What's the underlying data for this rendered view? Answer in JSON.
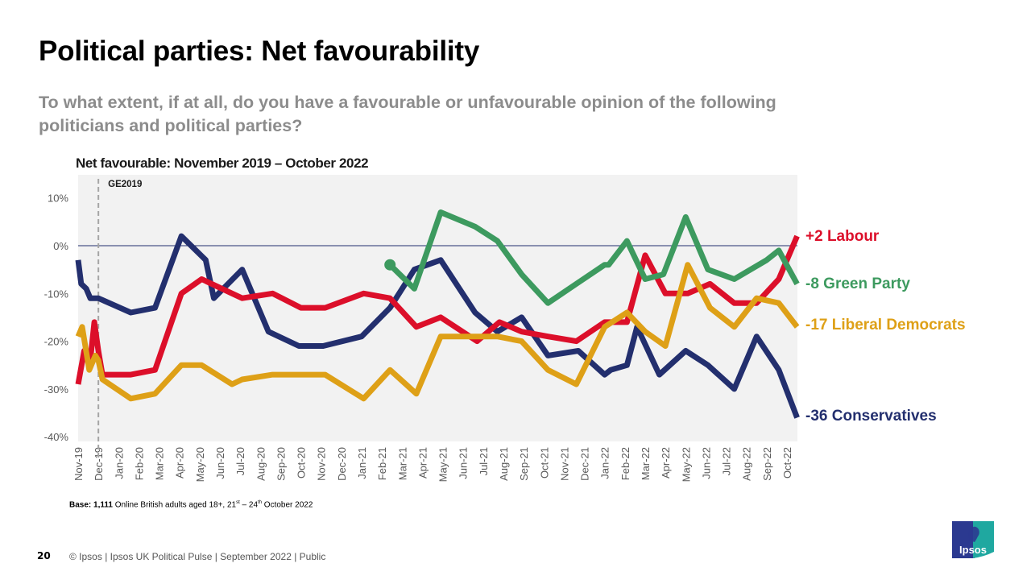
{
  "slide": {
    "title": "Political parties: Net favourability",
    "subtitle": "To what extent, if at all, do you have a favourable or unfavourable opinion of the following politicians and political parties?",
    "base_bold": "Base: 1,111",
    "base_text": " Online British adults aged 18+, 21",
    "base_sup1": "st",
    "base_mid": " – 24",
    "base_sup2": "th",
    "base_end": " October 2022",
    "page_number": "20",
    "footer": "© Ipsos |  Ipsos UK Political Pulse | September 2022 | Public",
    "logo_text": "Ipsos",
    "logo_colors": {
      "left": "#2b3990",
      "right": "#1fa8a0"
    }
  },
  "chart_data": {
    "type": "line",
    "title": "Net favourable: November 2019 – October 2022",
    "xlabel": "",
    "ylabel": "",
    "ylim": [
      -40,
      10
    ],
    "yticks": [
      10,
      0,
      -10,
      -20,
      -30,
      -40
    ],
    "ytick_labels": [
      "10%",
      "0%",
      "-10%",
      "-20%",
      "-30%",
      "-40%"
    ],
    "grid": false,
    "categories": [
      "Nov-19",
      "Dec-19",
      "Jan-20",
      "Feb-20",
      "Mar-20",
      "Apr-20",
      "May-20",
      "Jun-20",
      "Jul-20",
      "Aug-20",
      "Sep-20",
      "Oct-20",
      "Nov-20",
      "Dec-20",
      "Jan-21",
      "Feb-21",
      "Mar-21",
      "Apr-21",
      "May-21",
      "Jun-21",
      "Jul-21",
      "Aug-21",
      "Sep-21",
      "Oct-21",
      "Nov-21",
      "Dec-21",
      "Jan-22",
      "Feb-22",
      "Mar-22",
      "Apr-22",
      "May-22",
      "Jun-22",
      "Jul-22",
      "Aug-22",
      "Sep-22",
      "Oct-22"
    ],
    "annotation": {
      "label": "GE2019",
      "x": 1
    },
    "series": [
      {
        "name": "Conservatives",
        "end_label": "-36 Conservatives",
        "color": "#232f6e",
        "x": [
          0,
          0.15,
          0.4,
          0.6,
          1,
          2.6,
          3.8,
          5.1,
          6.3,
          6.7,
          8.1,
          9.4,
          10.9,
          12.1,
          14,
          15.4,
          16.6,
          17.9,
          19.6,
          20.7,
          21.9,
          23.2,
          24.7,
          26,
          26.3,
          27.1,
          27.6,
          28.7,
          30,
          31.1,
          32.4,
          33.5,
          34.6,
          35.5
        ],
        "values": [
          -3,
          -8,
          -9,
          -11,
          -11,
          -14,
          -13,
          2,
          -3,
          -11,
          -5,
          -18,
          -21,
          -21,
          -19,
          -13,
          -5,
          -3,
          -14,
          -18,
          -15,
          -23,
          -22,
          -27,
          -26,
          -25,
          -17,
          -27,
          -22,
          -25,
          -30,
          -19,
          -26,
          -36
        ]
      },
      {
        "name": "Labour",
        "end_label": "+2 Labour",
        "color": "#dc0f2a",
        "x": [
          0,
          0.3,
          0.6,
          0.8,
          1,
          1.2,
          2.6,
          3.8,
          5.1,
          6.1,
          7.6,
          8.1,
          9.6,
          11,
          12.2,
          14.1,
          15.4,
          16.7,
          17.9,
          19.7,
          20.8,
          21.9,
          23.2,
          24.6,
          26,
          27.1,
          28,
          29,
          30.1,
          31.2,
          32.4,
          33.5,
          34.6,
          35.5
        ],
        "values": [
          -29,
          -22,
          -24,
          -16,
          -22,
          -27,
          -27,
          -26,
          -10,
          -7,
          -10,
          -11,
          -10,
          -13,
          -13,
          -10,
          -11,
          -17,
          -15,
          -20,
          -16,
          -18,
          -19,
          -20,
          -16,
          -16,
          -2,
          -10,
          -10,
          -8,
          -12,
          -12,
          -7,
          2
        ]
      },
      {
        "name": "Green Party",
        "end_label": "-8 Green Party",
        "color": "#3d9a5f",
        "x": [
          15.4,
          16.6,
          17.9,
          19.6,
          20.7,
          21.9,
          23.2,
          24.6,
          26,
          26.2,
          27.1,
          28,
          28.9,
          30,
          31.1,
          32.4,
          34,
          34.6,
          35.5
        ],
        "values": [
          -4,
          -9,
          7,
          4,
          1,
          -6,
          -12,
          -8,
          -4,
          -4,
          1,
          -7,
          -6,
          6,
          -5,
          -7,
          -3,
          -1,
          -8
        ]
      },
      {
        "name": "Liberal Democrats",
        "end_label": "-17 Liberal Democrats",
        "color": "#dea017",
        "x": [
          0,
          0.2,
          0.55,
          0.85,
          1,
          1.2,
          2.6,
          3.8,
          5.1,
          6.1,
          7.6,
          8.1,
          9.6,
          11,
          12.2,
          14.1,
          15.4,
          16.7,
          17.9,
          19.6,
          20.7,
          21.9,
          23.2,
          24.6,
          26,
          27.1,
          28,
          29,
          30.1,
          31.2,
          32.4,
          33.5,
          34.6,
          35.5
        ],
        "values": [
          -19,
          -17,
          -26,
          -23,
          -24,
          -28,
          -32,
          -31,
          -25,
          -25,
          -29,
          -28,
          -27,
          -27,
          -27,
          -32,
          -26,
          -31,
          -19,
          -19,
          -19,
          -20,
          -26,
          -29,
          -17,
          -14,
          -18,
          -21,
          -4,
          -13,
          -17,
          -11,
          -12,
          -17
        ]
      }
    ]
  }
}
